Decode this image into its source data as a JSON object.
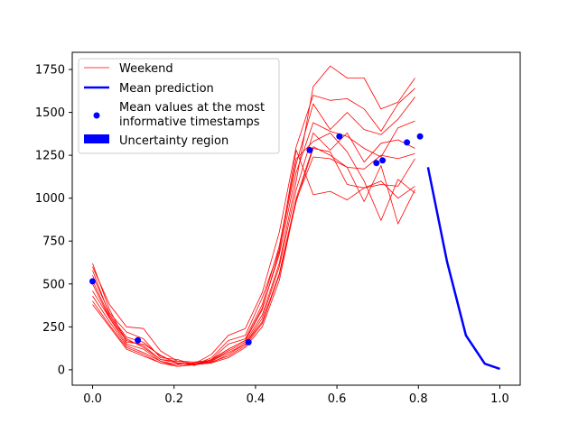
{
  "chart_data": {
    "type": "line",
    "xlim": [
      -0.05,
      1.05
    ],
    "ylim": [
      -90,
      1850
    ],
    "xticks": [
      0.0,
      0.2,
      0.4,
      0.6,
      0.8,
      1.0
    ],
    "xtick_labels": [
      "0.0",
      "0.2",
      "0.4",
      "0.6",
      "0.8",
      "1.0"
    ],
    "yticks": [
      0,
      250,
      500,
      750,
      1000,
      1250,
      1500,
      1750
    ],
    "ytick_labels": [
      "0",
      "250",
      "500",
      "750",
      "1000",
      "1250",
      "1500",
      "1750"
    ],
    "grid": false,
    "legend_position": "top-left",
    "colors": {
      "weekend": "#ff0000",
      "mean": "#0000ff",
      "points": "#0000ff",
      "uncertainty": "#0000ff"
    },
    "legend": [
      {
        "label": "Weekend",
        "kind": "thin-line"
      },
      {
        "label": "Mean prediction",
        "kind": "thick-line"
      },
      {
        "label": "Mean values at the most",
        "label2": "informative timestamps",
        "kind": "point"
      },
      {
        "label": "Uncertainty region",
        "kind": "patch"
      }
    ],
    "weekend_x": [
      0.0,
      0.0417,
      0.0833,
      0.125,
      0.1667,
      0.2083,
      0.25,
      0.2917,
      0.3333,
      0.375,
      0.4167,
      0.4583,
      0.5,
      0.5417,
      0.5833,
      0.625,
      0.6667,
      0.7083,
      0.75,
      0.7917
    ],
    "weekend_series": [
      {
        "values": [
          620,
          350,
          160,
          150,
          85,
          35,
          30,
          50,
          110,
          160,
          320,
          620,
          1100,
          1650,
          1770,
          1700,
          1700,
          1520,
          1560,
          1700
        ]
      },
      {
        "values": [
          600,
          380,
          250,
          240,
          110,
          50,
          35,
          90,
          200,
          240,
          450,
          800,
          1300,
          1600,
          1570,
          1580,
          1520,
          1390,
          1550,
          1640
        ]
      },
      {
        "values": [
          550,
          330,
          220,
          180,
          70,
          60,
          30,
          70,
          170,
          200,
          420,
          700,
          1200,
          1550,
          1400,
          1500,
          1400,
          1370,
          1460,
          1590
        ]
      },
      {
        "values": [
          500,
          300,
          170,
          140,
          60,
          40,
          25,
          60,
          120,
          170,
          360,
          670,
          1150,
          1440,
          1390,
          1360,
          1290,
          1240,
          1410,
          1450
        ]
      },
      {
        "values": [
          460,
          300,
          150,
          120,
          50,
          30,
          40,
          50,
          100,
          150,
          300,
          600,
          1050,
          1380,
          1280,
          1380,
          1210,
          1320,
          1340,
          1290
        ]
      },
      {
        "values": [
          430,
          280,
          140,
          100,
          50,
          20,
          30,
          40,
          90,
          150,
          280,
          560,
          1000,
          1300,
          1250,
          1180,
          1170,
          1250,
          1230,
          1260
        ]
      },
      {
        "values": [
          400,
          260,
          130,
          90,
          40,
          20,
          30,
          45,
          80,
          140,
          270,
          550,
          980,
          1290,
          1270,
          1080,
          1060,
          1080,
          1070,
          1230
        ]
      },
      {
        "values": [
          380,
          250,
          120,
          80,
          40,
          20,
          30,
          40,
          70,
          130,
          250,
          520,
          990,
          1240,
          1230,
          1180,
          980,
          1190,
          850,
          1050
        ]
      },
      {
        "values": [
          580,
          320,
          190,
          160,
          80,
          40,
          30,
          60,
          150,
          180,
          380,
          720,
          1230,
          1330,
          1380,
          1270,
          1100,
          870,
          1110,
          1030
        ]
      },
      {
        "values": [
          520,
          310,
          180,
          130,
          60,
          50,
          45,
          55,
          120,
          170,
          350,
          690,
          1280,
          1020,
          1040,
          990,
          1060,
          1100,
          1000,
          1070
        ]
      }
    ],
    "mean_prediction": {
      "x": [
        0.8235,
        0.8704,
        0.9167,
        0.963,
        1.0
      ],
      "y": [
        1180,
        630,
        200,
        35,
        5
      ]
    },
    "informative_points": {
      "x": [
        0.0,
        0.111,
        0.383,
        0.533,
        0.606,
        0.697,
        0.712,
        0.772,
        0.804
      ],
      "y": [
        515,
        172,
        160,
        1280,
        1360,
        1205,
        1220,
        1325,
        1360
      ]
    }
  }
}
